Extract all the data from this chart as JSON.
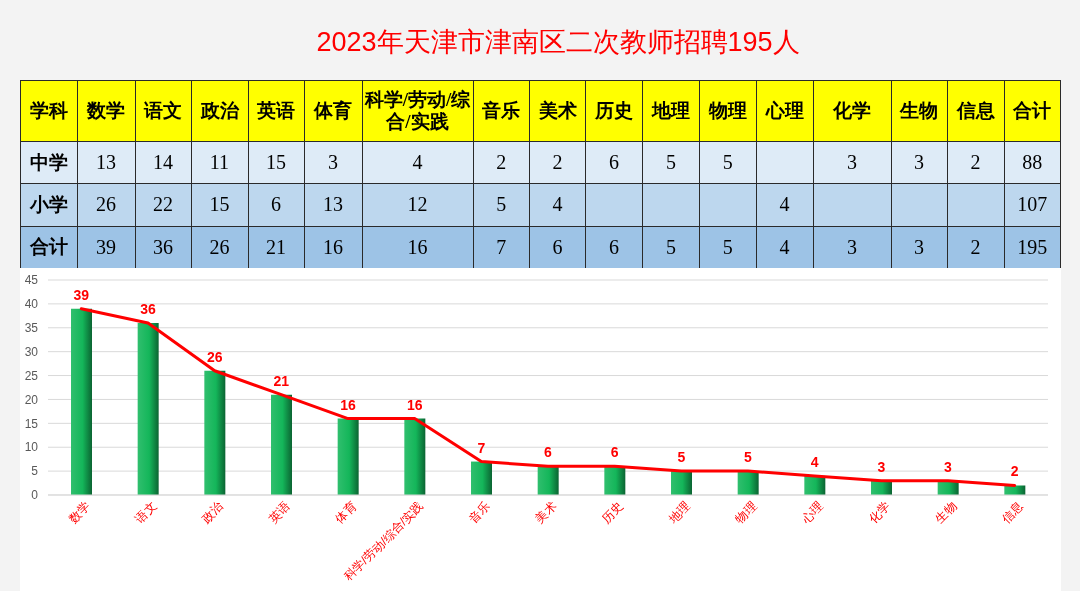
{
  "chart_data": [
    {
      "type": "heatmap",
      "title": "2023年天津市津南区二次教师招聘195人",
      "xlabel": "学科",
      "categories": [
        "数学",
        "语文",
        "政治",
        "英语",
        "体育",
        "科学/劳动/综合/实践",
        "音乐",
        "美术",
        "历史",
        "地理",
        "物理",
        "心理",
        "化学",
        "生物",
        "信息",
        "合计"
      ],
      "y_categories": [
        "中学",
        "小学",
        "合计"
      ],
      "cells": [
        [
          13,
          14,
          11,
          15,
          3,
          4,
          2,
          2,
          6,
          5,
          5,
          null,
          3,
          3,
          2,
          88
        ],
        [
          26,
          22,
          15,
          6,
          13,
          12,
          5,
          4,
          null,
          null,
          null,
          4,
          null,
          null,
          null,
          107
        ],
        [
          39,
          36,
          26,
          21,
          16,
          16,
          7,
          6,
          6,
          5,
          5,
          4,
          3,
          3,
          2,
          195
        ]
      ],
      "data_labels": true
    },
    {
      "type": "bar",
      "categories": [
        "数学",
        "语文",
        "政治",
        "英语",
        "体育",
        "科学/劳动/综合/实践",
        "音乐",
        "美术",
        "历史",
        "地理",
        "物理",
        "心理",
        "化学",
        "生物",
        "信息"
      ],
      "series": [
        {
          "type": "bar",
          "color": "#14b65a",
          "values": [
            39,
            36,
            26,
            21,
            16,
            16,
            7,
            6,
            6,
            5,
            5,
            4,
            3,
            3,
            2
          ]
        },
        {
          "type": "line",
          "color": "#ff0000",
          "values": [
            39,
            36,
            26,
            21,
            16,
            16,
            7,
            6,
            6,
            5,
            5,
            4,
            3,
            3,
            2
          ],
          "value_labels": [
            "39",
            "36",
            "26",
            "21",
            "16",
            "16",
            "7",
            "6",
            "6",
            "5",
            "5",
            "4",
            "3",
            "3",
            "2"
          ]
        }
      ],
      "ylim": [
        0,
        45
      ],
      "yticks": [
        0,
        5,
        10,
        15,
        20,
        25,
        30,
        35,
        40,
        45
      ],
      "grid": "y"
    }
  ]
}
